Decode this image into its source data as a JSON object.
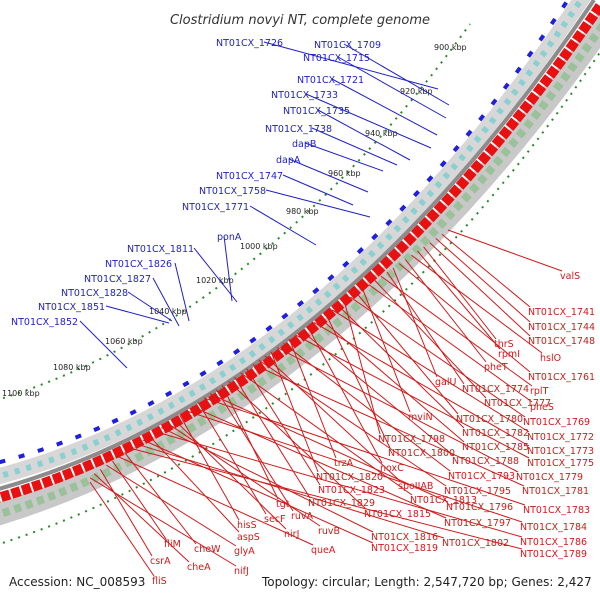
{
  "title": "Clostridium novyi NT, complete genome",
  "footer": {
    "accession": "Accession: NC_008593",
    "summary": "Topology: circular; Length: 2,547,720 bp; Genes: 2,427"
  },
  "colors": {
    "plus_strand": "#1f1fe0",
    "minus_strand": "#e81010",
    "backbone": "#8c8c8c",
    "dots": "#2a8a2a",
    "label_blue": "#1f1fc8",
    "label_red": "#d11a1a"
  },
  "ticks": [
    "900 kbp",
    "920 kbp",
    "940 kbp",
    "960 kbp",
    "980 kbp",
    "1000 kbp",
    "1020 kbp",
    "1040 kbp",
    "1060 kbp",
    "1080 kbp",
    "1100 kbp"
  ],
  "plus_labels": [
    "NT01CX_1726",
    "NT01CX_1709",
    "NT01CX_1715",
    "NT01CX_1721",
    "NT01CX_1733",
    "NT01CX_1735",
    "NT01CX_1738",
    "dapB",
    "dapA",
    "NT01CX_1747",
    "NT01CX_1758",
    "NT01CX_1771",
    "ponA",
    "NT01CX_1811",
    "NT01CX_1826",
    "NT01CX_1827",
    "NT01CX_1828",
    "NT01CX_1851",
    "NT01CX_1852"
  ],
  "minus_labels": [
    "valS",
    "NT01CX_1741",
    "NT01CX_1744",
    "NT01CX_1748",
    "thrS",
    "rpmI",
    "hslO",
    "pheT",
    "NT01CX_1761",
    "galU",
    "NT01CX_1774",
    "rplT",
    "NT01CX_1777",
    "pheS",
    "mviN",
    "NT01CX_1780",
    "NT01CX_1769",
    "NT01CX_1798",
    "NT01CX_1782",
    "NT01CX_1772",
    "NT01CX_1800",
    "NT01CX_1785",
    "NT01CX_1773",
    "noxC",
    "NT01CX_1788",
    "NT01CX_1775",
    "trzA",
    "NT01CX_1793",
    "NT01CX_1779",
    "NT01CX_1820",
    "spoIIAB",
    "NT01CX_1795",
    "NT01CX_1781",
    "NT01CX_1823",
    "NT01CX_1813",
    "NT01CX_1829",
    "NT01CX_1815",
    "tgt",
    "ruvA",
    "NT01CX_1796",
    "NT01CX_1783",
    "secF",
    "NT01CX_1797",
    "NT01CX_1784",
    "hisS",
    "nirJ",
    "ruvB",
    "NT01CX_1816",
    "NT01CX_1786",
    "aspS",
    "NT01CX_1819",
    "NT01CX_1802",
    "NT01CX_1789",
    "cheW",
    "queA",
    "fliM",
    "glyA",
    "csrA",
    "cheA",
    "nifJ",
    "fliS"
  ]
}
